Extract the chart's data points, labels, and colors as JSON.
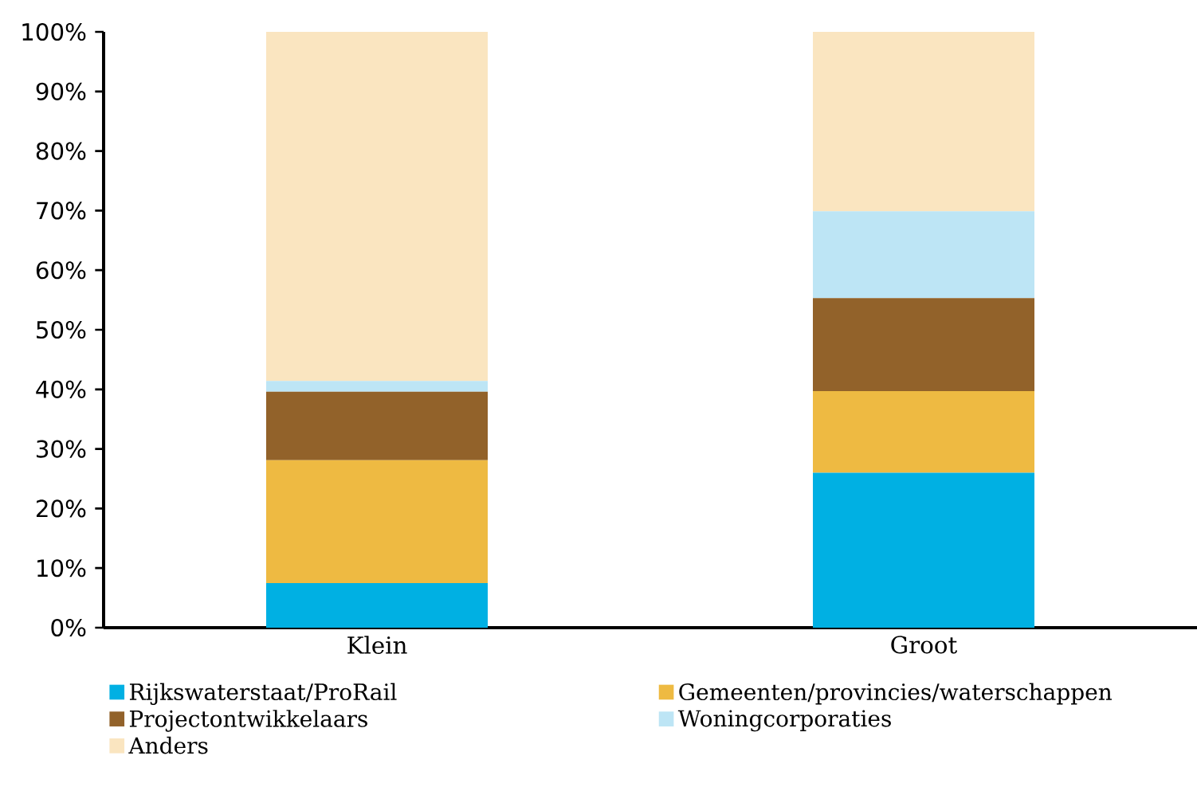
{
  "chart_data": {
    "type": "bar",
    "stacked": true,
    "categories": [
      "Klein",
      "Groot"
    ],
    "series": [
      {
        "name": "Rijkswaterstaat/ProRail",
        "color": "#00b0e3",
        "values": [
          7.5,
          26.0
        ]
      },
      {
        "name": "Gemeenten/provincies/waterschappen",
        "color": "#eeba42",
        "values": [
          20.6,
          13.7
        ]
      },
      {
        "name": "Projectontwikkelaars",
        "color": "#92622a",
        "values": [
          11.5,
          15.6
        ]
      },
      {
        "name": "Woningcorporaties",
        "color": "#bde5f5",
        "values": [
          1.8,
          14.6
        ]
      },
      {
        "name": "Anders",
        "color": "#fae5c0",
        "values": [
          58.6,
          30.1
        ]
      }
    ],
    "ylim": [
      0,
      100
    ],
    "yticks": [
      {
        "value": 0,
        "label": "0%"
      },
      {
        "value": 10,
        "label": "10%"
      },
      {
        "value": 20,
        "label": "20%"
      },
      {
        "value": 30,
        "label": "30%"
      },
      {
        "value": 40,
        "label": "40%"
      },
      {
        "value": 50,
        "label": "50%"
      },
      {
        "value": 60,
        "label": "60%"
      },
      {
        "value": 70,
        "label": "70%"
      },
      {
        "value": 80,
        "label": "80%"
      },
      {
        "value": 90,
        "label": "90%"
      },
      {
        "value": 100,
        "label": "100%"
      }
    ],
    "grid": false,
    "legend": "bottom"
  }
}
